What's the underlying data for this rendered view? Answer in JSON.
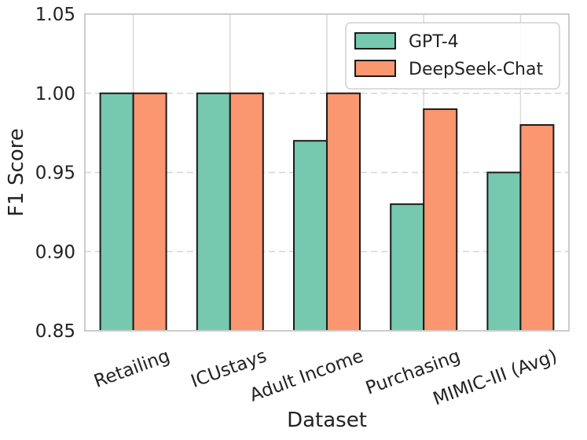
{
  "chart_data": {
    "type": "bar",
    "categories": [
      "Retailing",
      "ICUstays",
      "Adult Income",
      "Purchasing",
      "MIMIC-III (Avg)"
    ],
    "series": [
      {
        "name": "GPT-4",
        "values": [
          1.0,
          1.0,
          0.97,
          0.93,
          0.95
        ],
        "color": "#76c8ae"
      },
      {
        "name": "DeepSeek-Chat",
        "values": [
          1.0,
          1.0,
          1.0,
          0.99,
          0.98
        ],
        "color": "#fa9670"
      }
    ],
    "title": "",
    "xlabel": "Dataset",
    "ylabel": "F1 Score",
    "ylim": [
      0.85,
      1.05
    ],
    "yticks": [
      0.85,
      0.9,
      0.95,
      1.0,
      1.05
    ],
    "ytick_labels": [
      "0.85",
      "0.90",
      "0.95",
      "1.00",
      "1.05"
    ],
    "grid": true,
    "legend_position": "top-right"
  }
}
